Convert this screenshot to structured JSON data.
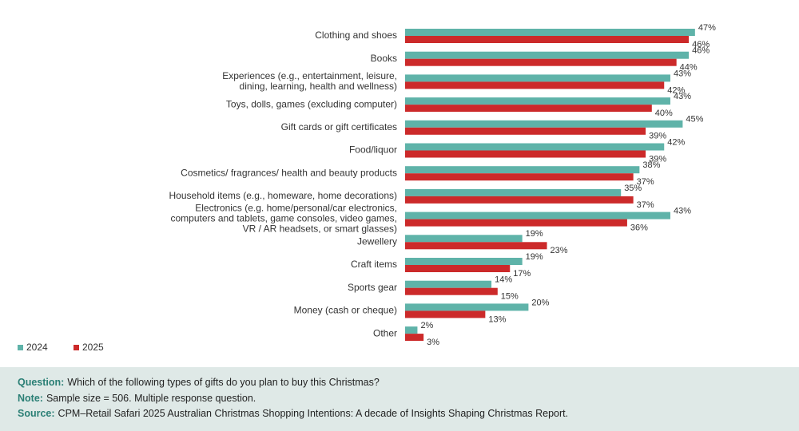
{
  "chart_data": {
    "type": "hbar",
    "categories": [
      "Clothing and shoes",
      "Books",
      "Experiences (e.g., entertainment, leisure,\ndining, learning, health and wellness)",
      "Toys, dolls, games (excluding computer)",
      "Gift cards or gift certificates",
      "Food/liquor",
      "Cosmetics/ fragrances/ health and beauty products",
      "Household items (e.g., homeware, home decorations)",
      "Electronics (e.g. home/personal/car electronics,\ncomputers and tablets, game consoles, video games,\nVR / AR headsets, or smart glasses)",
      "Jewellery",
      "Craft items",
      "Sports gear",
      "Money (cash or cheque)",
      "Other"
    ],
    "series": [
      {
        "name": "2024",
        "color": "#5fb3a9",
        "values": [
          47,
          46,
          43,
          43,
          45,
          42,
          38,
          35,
          43,
          19,
          19,
          14,
          20,
          2
        ],
        "value_labels": [
          "47%",
          "46%",
          "43%",
          "43%",
          "45%",
          "42%",
          "38%",
          "35%",
          "43%",
          "19%",
          "19%",
          "14%",
          "20%",
          "2%"
        ]
      },
      {
        "name": "2025",
        "color": "#cc2a2a",
        "values": [
          46,
          44,
          42,
          40,
          39,
          39,
          37,
          37,
          36,
          23,
          17,
          15,
          13,
          3
        ],
        "value_labels": [
          "46%",
          "44%",
          "42%",
          "40%",
          "39%",
          "39%",
          "37%",
          "37%",
          "36%",
          "23%",
          "17%",
          "15%",
          "13%",
          "3%"
        ]
      }
    ],
    "legend": "bottom-left",
    "notes": [
      {
        "label": "Question:",
        "text": "Which of the following types of gifts do you plan to buy this Christmas?"
      },
      {
        "label": "Note:",
        "text": "Sample size = 506. Multiple response question."
      },
      {
        "label": "Source:",
        "text": "CPM–Retail Safari 2025 Australian Christmas Shopping Intentions: A decade of Insights Shaping Christmas Report."
      }
    ]
  }
}
